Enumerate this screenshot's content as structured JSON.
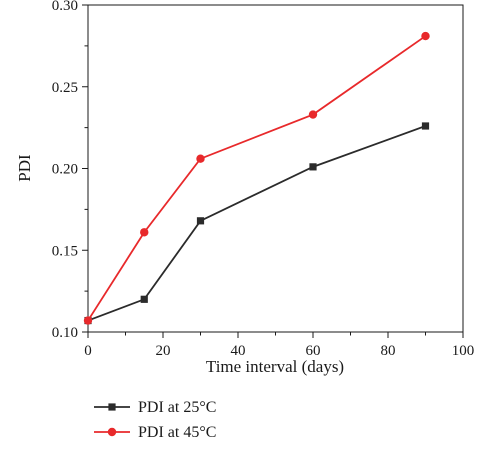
{
  "chart_data": {
    "type": "line",
    "title": "",
    "xlabel": "Time interval (days)",
    "ylabel": "PDI",
    "xlim": [
      0,
      100
    ],
    "ylim": [
      0.1,
      0.3
    ],
    "x_ticks": [
      "0",
      "20",
      "40",
      "60",
      "80",
      "100"
    ],
    "y_ticks": [
      "0.10",
      "0.15",
      "0.20",
      "0.25",
      "0.30"
    ],
    "grid": false,
    "legend_position": "bottom-left, below plot",
    "series": [
      {
        "name": "PDI at 25°C",
        "color": "#2b2b2b",
        "marker": "square",
        "x": [
          0,
          15,
          30,
          60,
          90
        ],
        "y": [
          0.107,
          0.12,
          0.168,
          0.201,
          0.226
        ]
      },
      {
        "name": "PDI at 45°C",
        "color": "#e8292b",
        "marker": "circle",
        "x": [
          0,
          15,
          30,
          60,
          90
        ],
        "y": [
          0.107,
          0.161,
          0.206,
          0.233,
          0.281
        ]
      }
    ]
  }
}
